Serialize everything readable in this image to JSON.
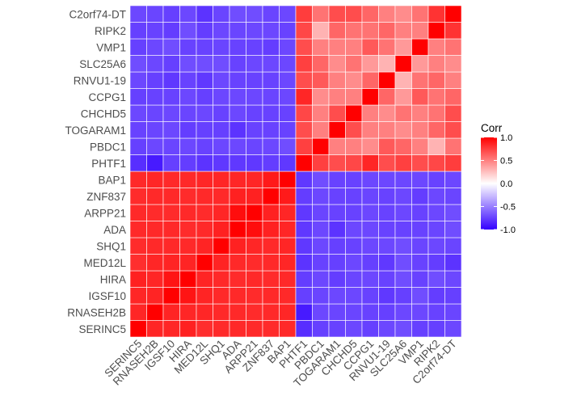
{
  "chart_data": {
    "type": "heatmap",
    "legend_title": "Corr",
    "legend_position": "right",
    "color_scale": {
      "low": "#3300ff",
      "mid": "#ffffff",
      "high": "#ff0000",
      "limits": [
        -1,
        1
      ]
    },
    "legend_ticks": [
      "1.0",
      "0.5",
      "0.0",
      "-0.5",
      "-1.0"
    ],
    "legend_tick_values": [
      1.0,
      0.5,
      0.0,
      -0.5,
      -1.0
    ],
    "x_labels": [
      "SERINC5",
      "RNASEH2B",
      "IGSF10",
      "HIRA",
      "MED12L",
      "SHQ1",
      "ADA",
      "ARPP21",
      "ZNF837",
      "BAP1",
      "PHTF1",
      "PBDC1",
      "TOGARAM1",
      "CHCHD5",
      "CCPG1",
      "RNVU1-19",
      "SLC25A6",
      "VMP1",
      "RIPK2",
      "C2orf74-DT"
    ],
    "y_labels": [
      "SERINC5",
      "RNASEH2B",
      "IGSF10",
      "HIRA",
      "MED12L",
      "SHQ1",
      "ADA",
      "ARPP21",
      "ZNF837",
      "BAP1",
      "PHTF1",
      "PBDC1",
      "TOGARAM1",
      "CHCHD5",
      "CCPG1",
      "RNVU1-19",
      "SLC25A6",
      "VMP1",
      "RIPK2",
      "C2orf74-DT"
    ],
    "values": [
      [
        1.0,
        0.85,
        0.85,
        0.87,
        0.82,
        0.83,
        0.84,
        0.84,
        0.83,
        0.84,
        -0.82,
        -0.75,
        -0.74,
        -0.72,
        -0.75,
        -0.72,
        -0.7,
        -0.75,
        -0.75,
        -0.72
      ],
      [
        0.85,
        1.0,
        0.86,
        0.85,
        0.85,
        0.84,
        0.84,
        0.83,
        0.84,
        0.85,
        -0.9,
        -0.72,
        -0.73,
        -0.73,
        -0.74,
        -0.75,
        -0.72,
        -0.72,
        -0.74,
        -0.73
      ],
      [
        0.85,
        0.86,
        1.0,
        0.92,
        0.86,
        0.84,
        0.84,
        0.83,
        0.84,
        0.84,
        -0.75,
        -0.73,
        -0.72,
        -0.72,
        -0.74,
        -0.78,
        -0.75,
        -0.7,
        -0.76,
        -0.75
      ],
      [
        0.87,
        0.85,
        0.92,
        1.0,
        0.86,
        0.84,
        0.83,
        0.84,
        0.83,
        0.84,
        -0.76,
        -0.72,
        -0.76,
        -0.73,
        -0.72,
        -0.74,
        -0.7,
        -0.74,
        -0.7,
        -0.72
      ],
      [
        0.82,
        0.85,
        0.86,
        0.86,
        1.0,
        0.86,
        0.84,
        0.83,
        0.84,
        0.85,
        -0.8,
        -0.74,
        -0.75,
        -0.72,
        -0.75,
        -0.78,
        -0.7,
        -0.74,
        -0.76,
        -0.8
      ],
      [
        0.83,
        0.84,
        0.84,
        0.84,
        0.86,
        1.0,
        0.87,
        0.85,
        0.84,
        0.85,
        -0.78,
        -0.72,
        -0.75,
        -0.74,
        -0.72,
        -0.72,
        -0.7,
        -0.73,
        -0.72,
        -0.73
      ],
      [
        0.84,
        0.84,
        0.84,
        0.83,
        0.84,
        0.87,
        1.0,
        0.95,
        0.87,
        0.85,
        -0.78,
        -0.72,
        -0.8,
        -0.72,
        -0.72,
        -0.74,
        -0.74,
        -0.74,
        -0.73,
        -0.7
      ],
      [
        0.84,
        0.83,
        0.83,
        0.84,
        0.83,
        0.85,
        0.95,
        1.0,
        0.87,
        0.85,
        -0.78,
        -0.73,
        -0.74,
        -0.74,
        -0.72,
        -0.74,
        -0.72,
        -0.74,
        -0.72,
        -0.7
      ],
      [
        0.83,
        0.84,
        0.84,
        0.83,
        0.84,
        0.84,
        0.87,
        0.87,
        1.0,
        0.9,
        -0.76,
        -0.72,
        -0.74,
        -0.74,
        -0.73,
        -0.74,
        -0.72,
        -0.76,
        -0.72,
        -0.73
      ],
      [
        0.84,
        0.85,
        0.84,
        0.84,
        0.85,
        0.85,
        0.85,
        0.85,
        0.9,
        1.0,
        -0.78,
        -0.7,
        -0.74,
        -0.74,
        -0.72,
        -0.72,
        -0.72,
        -0.72,
        -0.74,
        -0.72
      ],
      [
        -0.82,
        -0.9,
        -0.75,
        -0.76,
        -0.8,
        -0.78,
        -0.78,
        -0.78,
        -0.76,
        -0.78,
        1.0,
        0.75,
        0.7,
        0.72,
        0.85,
        0.7,
        0.75,
        0.7,
        0.72,
        0.76
      ],
      [
        -0.75,
        -0.72,
        -0.73,
        -0.72,
        -0.74,
        -0.72,
        -0.72,
        -0.73,
        -0.72,
        -0.7,
        0.75,
        1.0,
        0.5,
        0.5,
        0.45,
        0.65,
        0.6,
        0.5,
        0.3,
        0.55
      ],
      [
        -0.74,
        -0.73,
        -0.72,
        -0.76,
        -0.75,
        -0.75,
        -0.8,
        -0.74,
        -0.74,
        -0.74,
        0.7,
        0.5,
        1.0,
        0.7,
        0.5,
        0.5,
        0.45,
        0.5,
        0.6,
        0.7
      ],
      [
        -0.72,
        -0.73,
        -0.72,
        -0.73,
        -0.72,
        -0.74,
        -0.72,
        -0.74,
        -0.74,
        -0.74,
        0.72,
        0.5,
        0.7,
        1.0,
        0.5,
        0.45,
        0.55,
        0.5,
        0.55,
        0.7
      ],
      [
        -0.75,
        -0.74,
        -0.74,
        -0.72,
        -0.75,
        -0.72,
        -0.72,
        -0.72,
        -0.73,
        -0.72,
        0.85,
        0.45,
        0.5,
        0.5,
        1.0,
        0.6,
        0.4,
        0.65,
        0.55,
        0.6
      ],
      [
        -0.72,
        -0.75,
        -0.78,
        -0.74,
        -0.78,
        -0.72,
        -0.74,
        -0.74,
        -0.74,
        -0.72,
        0.7,
        0.65,
        0.5,
        0.45,
        0.6,
        1.0,
        0.3,
        0.55,
        0.6,
        0.5
      ],
      [
        -0.7,
        -0.72,
        -0.75,
        -0.7,
        -0.7,
        -0.7,
        -0.74,
        -0.72,
        -0.72,
        -0.72,
        0.75,
        0.6,
        0.45,
        0.55,
        0.4,
        0.3,
        1.0,
        0.4,
        0.5,
        0.45
      ],
      [
        -0.75,
        -0.72,
        -0.7,
        -0.74,
        -0.74,
        -0.73,
        -0.74,
        -0.74,
        -0.76,
        -0.72,
        0.7,
        0.5,
        0.5,
        0.5,
        0.65,
        0.55,
        0.4,
        1.0,
        0.5,
        0.55
      ],
      [
        -0.75,
        -0.74,
        -0.76,
        -0.7,
        -0.76,
        -0.72,
        -0.73,
        -0.72,
        -0.72,
        -0.74,
        0.72,
        0.3,
        0.6,
        0.55,
        0.55,
        0.6,
        0.5,
        0.5,
        1.0,
        0.8
      ],
      [
        -0.72,
        -0.73,
        -0.75,
        -0.72,
        -0.8,
        -0.73,
        -0.7,
        -0.7,
        -0.73,
        -0.72,
        0.76,
        0.55,
        0.7,
        0.7,
        0.6,
        0.5,
        0.45,
        0.55,
        0.8,
        1.0
      ]
    ]
  }
}
